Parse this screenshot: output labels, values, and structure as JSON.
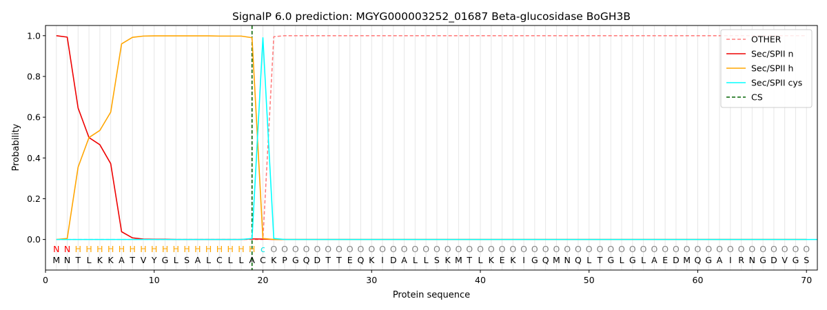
{
  "chart_data": {
    "type": "line",
    "title": "SignalP 6.0 prediction: MGYG000003252_01687 Beta-glucosidase BoGH3B",
    "xlabel": "Protein sequence",
    "ylabel": "Probability",
    "xlim": [
      0,
      71
    ],
    "ylim": [
      -0.15,
      1.05
    ],
    "xticks": [
      0,
      10,
      20,
      30,
      40,
      50,
      60,
      70
    ],
    "yticks": [
      0.0,
      0.2,
      0.4,
      0.6,
      0.8,
      1.0
    ],
    "grid": "vertical lines at each residue",
    "legend_position": "top-right",
    "sequence": [
      "M",
      "N",
      "T",
      "L",
      "K",
      "K",
      "A",
      "T",
      "V",
      "Y",
      "G",
      "L",
      "S",
      "A",
      "L",
      "C",
      "L",
      "L",
      "A",
      "C",
      "K",
      "P",
      "G",
      "Q",
      "D",
      "T",
      "T",
      "E",
      "Q",
      "K",
      "I",
      "D",
      "A",
      "L",
      "L",
      "S",
      "K",
      "M",
      "T",
      "L",
      "K",
      "E",
      "K",
      "I",
      "G",
      "Q",
      "M",
      "N",
      "Q",
      "L",
      "T",
      "G",
      "L",
      "G",
      "L",
      "A",
      "E",
      "D",
      "M",
      "Q",
      "G",
      "A",
      "I",
      "R",
      "N",
      "G",
      "D",
      "V",
      "G",
      "S"
    ],
    "annotation": [
      "N",
      "N",
      "H",
      "H",
      "H",
      "H",
      "H",
      "H",
      "H",
      "H",
      "H",
      "H",
      "H",
      "H",
      "H",
      "H",
      "H",
      "H",
      "H",
      "c",
      "O",
      "O",
      "O",
      "O",
      "O",
      "O",
      "O",
      "O",
      "O",
      "O",
      "O",
      "O",
      "O",
      "O",
      "O",
      "O",
      "O",
      "O",
      "O",
      "O",
      "O",
      "O",
      "O",
      "O",
      "O",
      "O",
      "O",
      "O",
      "O",
      "O",
      "O",
      "O",
      "O",
      "O",
      "O",
      "O",
      "O",
      "O",
      "O",
      "O",
      "O",
      "O",
      "O",
      "O",
      "O",
      "O",
      "O",
      "O",
      "O",
      "O"
    ],
    "annotation_colors": {
      "N": "#ff0000",
      "H": "#ffa500",
      "c": "#00e5e5",
      "O": "#808080"
    },
    "cleavage_site": 19,
    "series": [
      {
        "name": "OTHER",
        "color": "#ff7f7f",
        "dash": "dashed",
        "values": [
          0,
          0,
          0,
          0,
          0,
          0,
          0,
          0,
          0,
          0,
          0,
          0,
          0,
          0,
          0,
          0,
          0,
          0,
          0,
          0,
          0.995,
          1,
          1,
          1,
          1,
          1,
          1,
          1,
          1,
          1,
          1,
          1,
          1,
          1,
          1,
          1,
          1,
          1,
          1,
          1,
          1,
          1,
          1,
          1,
          1,
          1,
          1,
          1,
          1,
          1,
          1,
          1,
          1,
          1,
          1,
          1,
          1,
          1,
          1,
          1,
          1,
          1,
          1,
          1,
          1,
          1,
          1,
          1,
          1,
          1
        ]
      },
      {
        "name": "Sec/SPII n",
        "color": "#ee0000",
        "dash": "solid",
        "values": [
          1.0,
          0.993,
          0.645,
          0.5,
          0.465,
          0.372,
          0.038,
          0.008,
          0.002,
          0.001,
          0.001,
          0,
          0,
          0,
          0,
          0,
          0,
          0,
          0.003,
          0.002,
          0,
          0,
          0,
          0,
          0,
          0,
          0,
          0,
          0,
          0,
          0,
          0,
          0,
          0,
          0,
          0,
          0,
          0,
          0,
          0,
          0,
          0,
          0,
          0,
          0,
          0,
          0,
          0,
          0,
          0,
          0,
          0,
          0,
          0,
          0,
          0,
          0,
          0,
          0,
          0,
          0,
          0,
          0,
          0,
          0,
          0,
          0,
          0,
          0,
          0
        ]
      },
      {
        "name": "Sec/SPII h",
        "color": "#ffa500",
        "dash": "solid",
        "values": [
          0,
          0.005,
          0.355,
          0.5,
          0.535,
          0.625,
          0.96,
          0.992,
          0.998,
          0.999,
          0.999,
          0.999,
          0.999,
          0.999,
          0.999,
          0.998,
          0.998,
          0.998,
          0.99,
          0.005,
          0,
          0,
          0,
          0,
          0,
          0,
          0,
          0,
          0,
          0,
          0,
          0,
          0,
          0,
          0,
          0,
          0,
          0,
          0,
          0,
          0,
          0,
          0,
          0,
          0,
          0,
          0,
          0,
          0,
          0,
          0,
          0,
          0,
          0,
          0,
          0,
          0,
          0,
          0,
          0,
          0,
          0,
          0,
          0,
          0,
          0,
          0,
          0,
          0,
          0
        ]
      },
      {
        "name": "Sec/SPII cys",
        "color": "#00ffff",
        "dash": "solid",
        "values": [
          0,
          0,
          0,
          0,
          0,
          0,
          0,
          0,
          0,
          0,
          0,
          0,
          0,
          0,
          0,
          0,
          0,
          0,
          0.005,
          0.99,
          0.005,
          0,
          0,
          0,
          0,
          0,
          0,
          0,
          0,
          0,
          0,
          0,
          0,
          0,
          0,
          0,
          0,
          0,
          0,
          0,
          0,
          0,
          0,
          0,
          0,
          0,
          0,
          0,
          0,
          0,
          0,
          0,
          0,
          0,
          0,
          0,
          0,
          0,
          0,
          0,
          0,
          0,
          0,
          0,
          0,
          0,
          0,
          0,
          0,
          0,
          0
        ]
      },
      {
        "name": "CS",
        "color": "#006400",
        "dash": "dashed"
      }
    ]
  }
}
